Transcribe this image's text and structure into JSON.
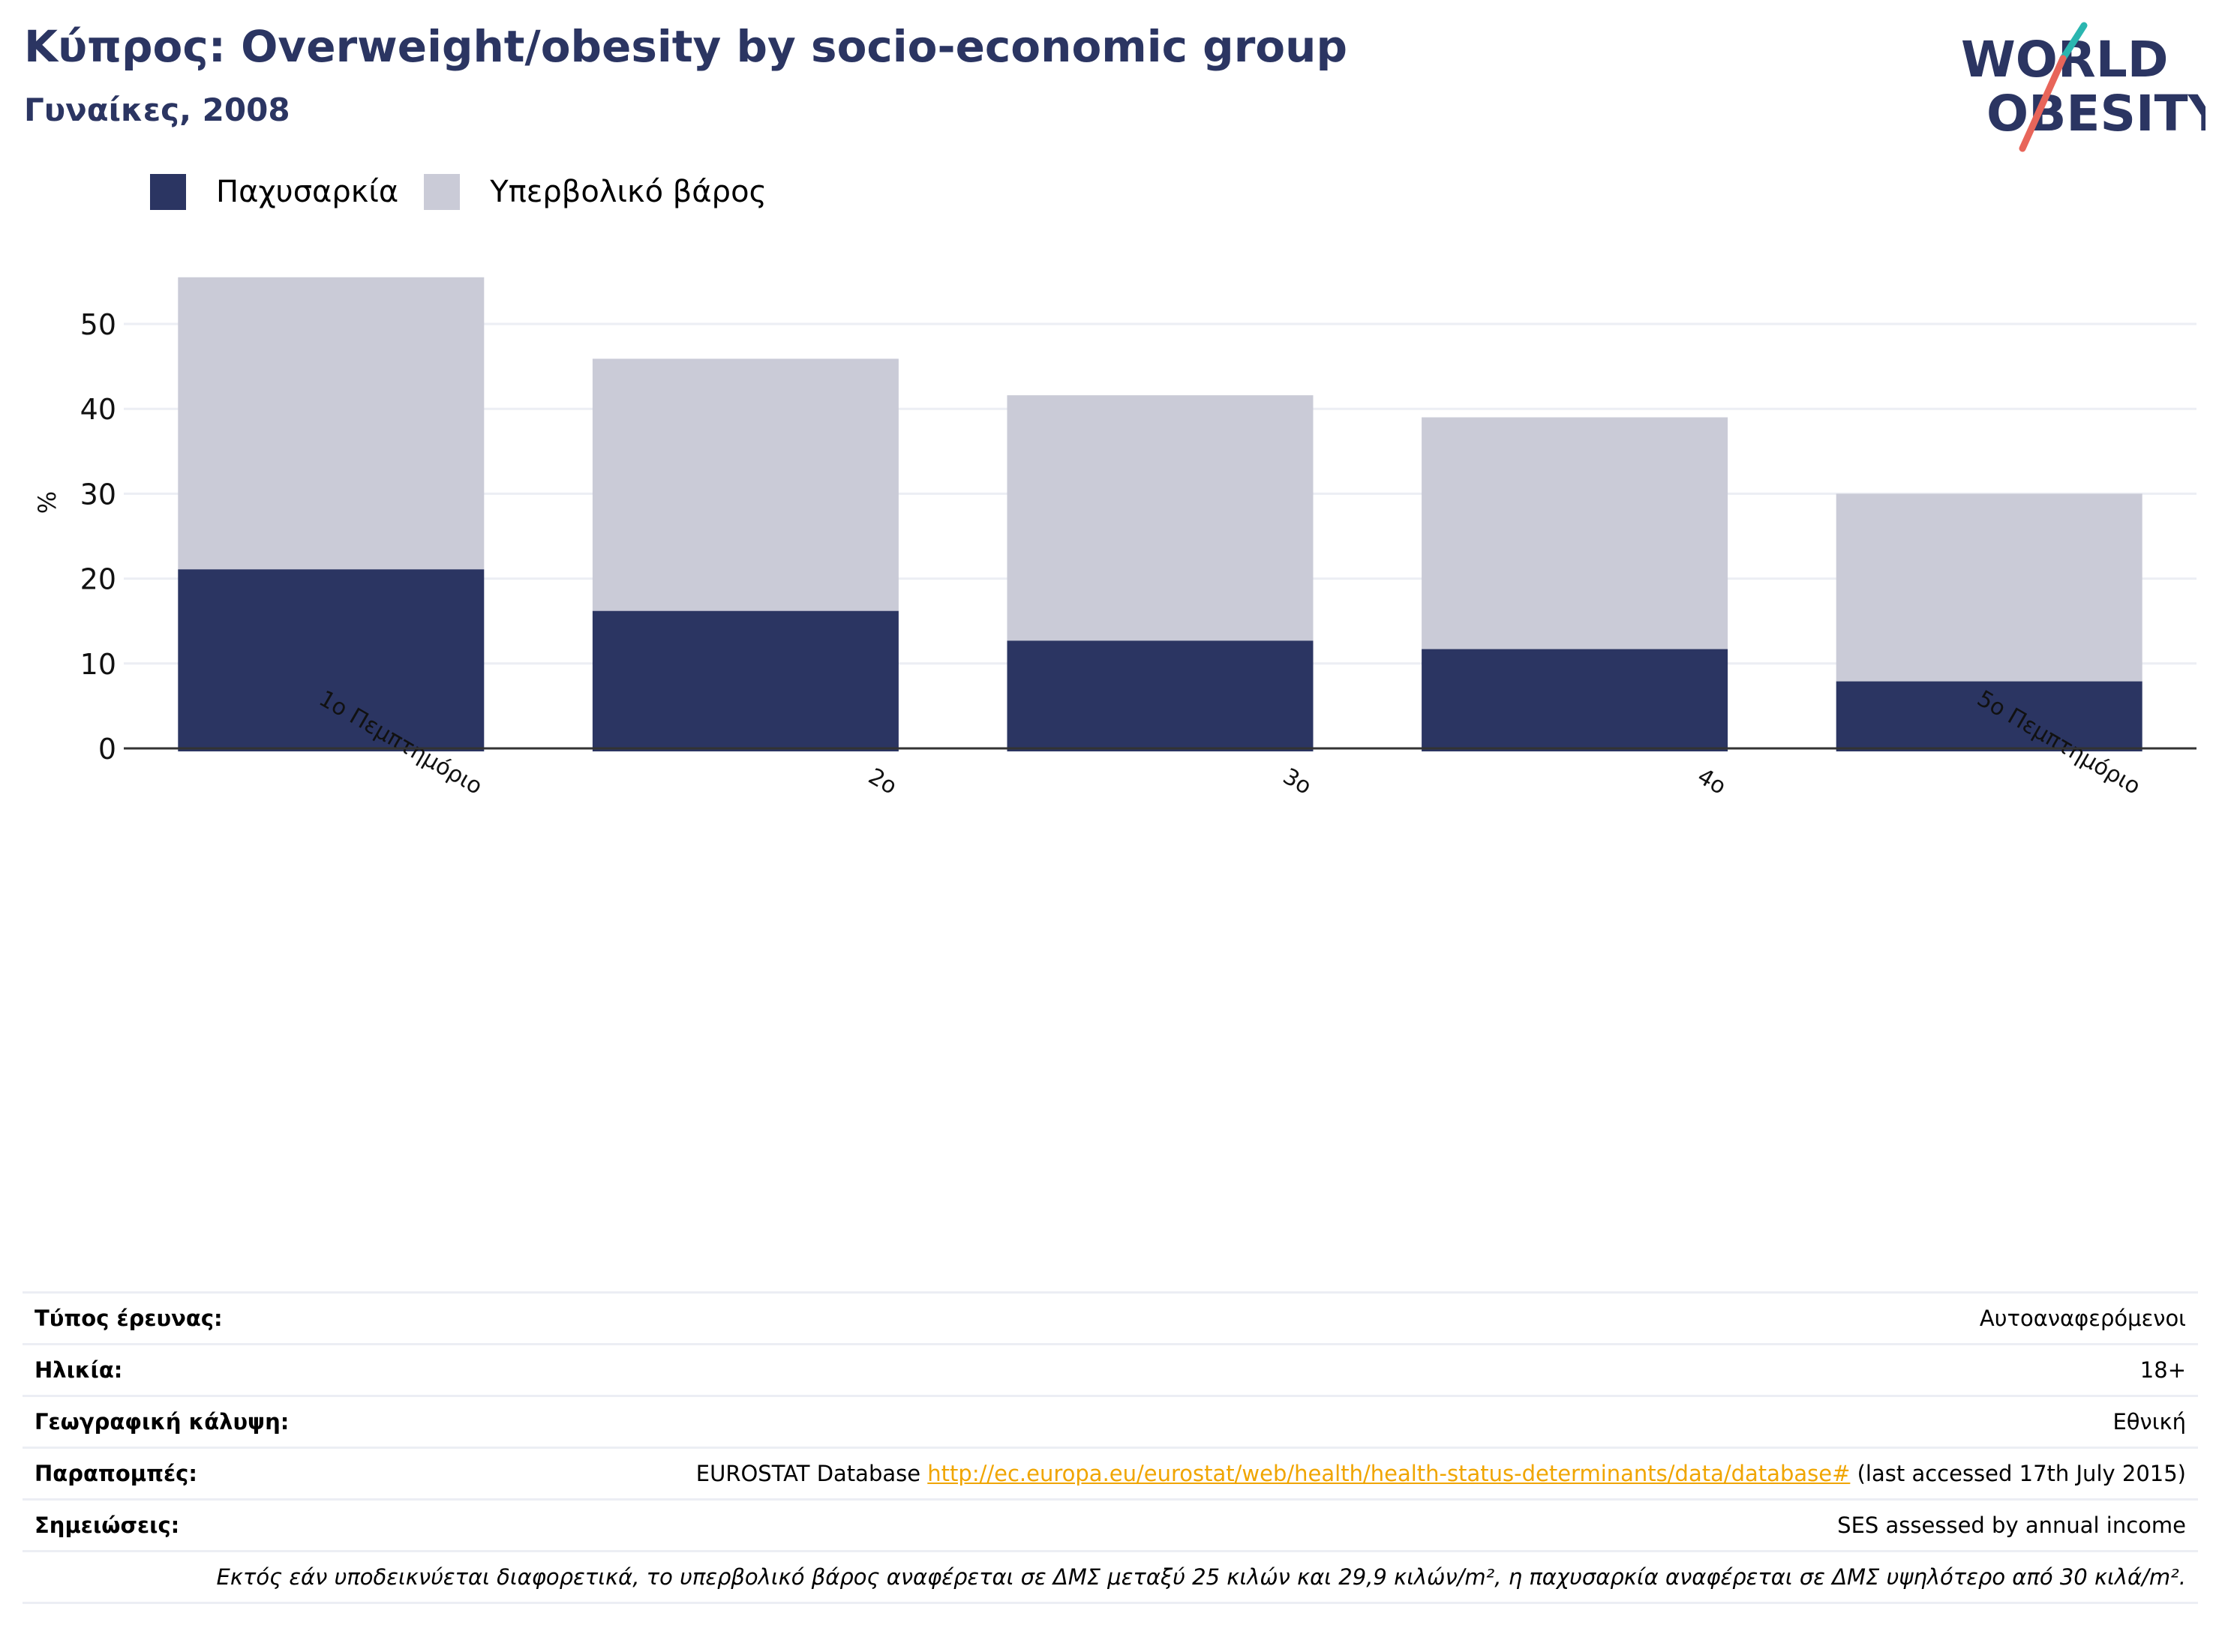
{
  "header": {
    "title": "Κύπρος: Overweight/obesity by socio-economic group",
    "subtitle": "Γυναίκες, 2008"
  },
  "logo": {
    "line1": "WORLD",
    "line2": "OBESITY",
    "colors": {
      "text": "#2b3562",
      "slash_top": "#2ab6b0",
      "slash_bottom": "#e8655a"
    }
  },
  "colors": {
    "obesity": "#2b3562",
    "overweight": "#cacbd7",
    "axis": "#333333",
    "grid": "#eceef4"
  },
  "chart_data": {
    "type": "bar",
    "stacked": true,
    "categories": [
      "1ο Πεμπτημόριο",
      "2ο",
      "3ο",
      "4ο",
      "5ο Πεμπτημόριο"
    ],
    "series": [
      {
        "name": "Παχυσαρκία",
        "values": [
          21.1,
          16.2,
          12.7,
          11.7,
          7.9
        ]
      },
      {
        "name": "Υπερβολικό βάρος",
        "values": [
          34.4,
          29.7,
          28.9,
          27.3,
          22.1
        ]
      }
    ],
    "ylabel": "%",
    "yticks": [
      0,
      10,
      20,
      30,
      40,
      50
    ],
    "ylim": [
      0,
      57
    ],
    "grid": true,
    "legend_position": "top-left"
  },
  "meta": {
    "rows": [
      {
        "label": "Τύπος έρευνας:",
        "value": "Αυτοαναφερόμενοι"
      },
      {
        "label": "Ηλικία:",
        "value": "18+"
      },
      {
        "label": "Γεωγραφική κάλυψη:",
        "value": "Εθνική"
      },
      {
        "label": "Παραπομπές:",
        "value_pre": "EUROSTAT Database ",
        "link": "http://ec.europa.eu/eurostat/web/health/health-status-determinants/data/database#",
        "value_post": " (last accessed 17th July 2015)"
      },
      {
        "label": "Σημειώσεις:",
        "value": "SES assessed by annual income"
      }
    ],
    "footnote": "Εκτός εάν υποδεικνύεται διαφορετικά, το υπερβολικό βάρος αναφέρεται σε ΔΜΣ μεταξύ 25 κιλών και 29,9 κιλών/m², η παχυσαρκία αναφέρεται σε ΔΜΣ υψηλότερο από 30 κιλά/m²."
  }
}
